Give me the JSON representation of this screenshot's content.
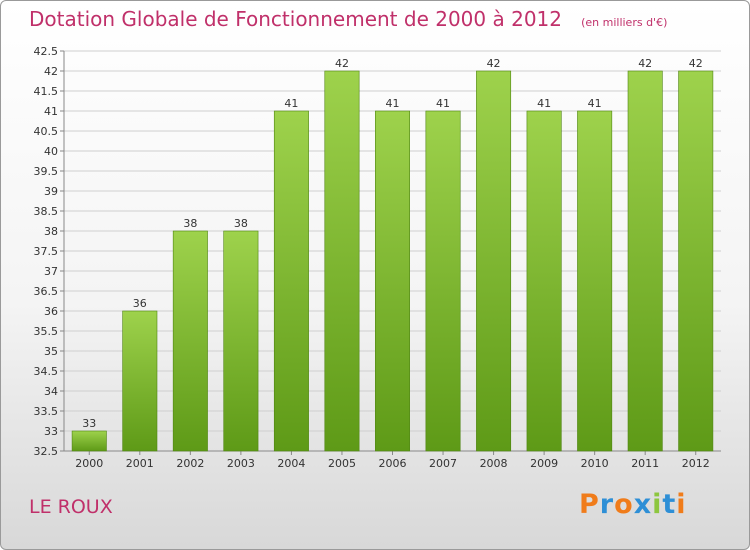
{
  "chart_data": {
    "type": "bar",
    "title": "Dotation Globale de Fonctionnement de 2000 à 2012",
    "subtitle": "(en milliers d'€)",
    "categories": [
      "2000",
      "2001",
      "2002",
      "2003",
      "2004",
      "2005",
      "2006",
      "2007",
      "2008",
      "2009",
      "2010",
      "2011",
      "2012"
    ],
    "values": [
      33,
      36,
      38,
      38,
      41,
      42,
      41,
      41,
      42,
      41,
      41,
      42,
      42
    ],
    "value_labels": [
      "33",
      "36",
      "38",
      "38",
      "41",
      "42",
      "41",
      "41",
      "42",
      "41",
      "41",
      "42",
      "42"
    ],
    "ylim": [
      32.5,
      42.5
    ],
    "yticks": [
      "32.5",
      "33",
      "33.5",
      "34",
      "34.5",
      "35",
      "35.5",
      "36",
      "36.5",
      "37",
      "37.5",
      "38",
      "38.5",
      "39",
      "39.5",
      "40",
      "40.5",
      "41",
      "41.5",
      "42",
      "42.5"
    ],
    "grid": true,
    "colors": {
      "bar_light": "#9ed24c",
      "bar_dark": "#5e9a17",
      "title": "#c0306a"
    }
  },
  "footer": {
    "commune": "LE ROUX",
    "brand": "Proxiti",
    "brand_colors": [
      "#f07c1a",
      "#2e8fd6",
      "#f07c1a",
      "#2e8fd6",
      "#8dc63f",
      "#2e8fd6",
      "#f07c1a"
    ]
  }
}
